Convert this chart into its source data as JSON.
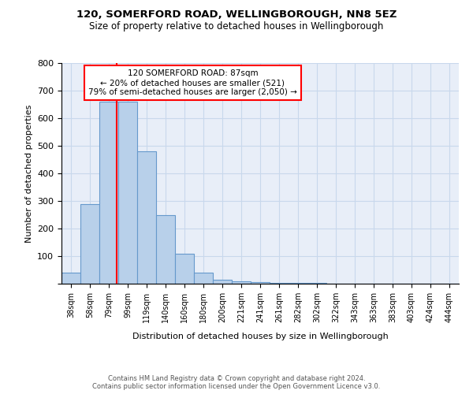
{
  "title1": "120, SOMERFORD ROAD, WELLINGBOROUGH, NN8 5EZ",
  "title2": "Size of property relative to detached houses in Wellingborough",
  "xlabel": "Distribution of detached houses by size in Wellingborough",
  "ylabel": "Number of detached properties",
  "bin_labels": [
    "38sqm",
    "58sqm",
    "79sqm",
    "99sqm",
    "119sqm",
    "140sqm",
    "160sqm",
    "180sqm",
    "200sqm",
    "221sqm",
    "241sqm",
    "261sqm",
    "282sqm",
    "302sqm",
    "322sqm",
    "343sqm",
    "363sqm",
    "383sqm",
    "403sqm",
    "424sqm",
    "444sqm"
  ],
  "bar_heights": [
    40,
    290,
    660,
    660,
    480,
    250,
    110,
    40,
    15,
    8,
    5,
    3,
    2,
    2,
    1,
    1,
    1,
    1,
    1,
    1,
    0
  ],
  "bar_color": "#b8d0ea",
  "bar_edge_color": "#6699cc",
  "annotation_text": "120 SOMERFORD ROAD: 87sqm\n← 20% of detached houses are smaller (521)\n79% of semi-detached houses are larger (2,050) →",
  "annotation_border_color": "red",
  "ylim": [
    0,
    800
  ],
  "yticks": [
    0,
    100,
    200,
    300,
    400,
    500,
    600,
    700,
    800
  ],
  "footer": "Contains HM Land Registry data © Crown copyright and database right 2024.\nContains public sector information licensed under the Open Government Licence v3.0.",
  "grid_color": "#c8d8ec",
  "bg_color": "#e8eef8"
}
